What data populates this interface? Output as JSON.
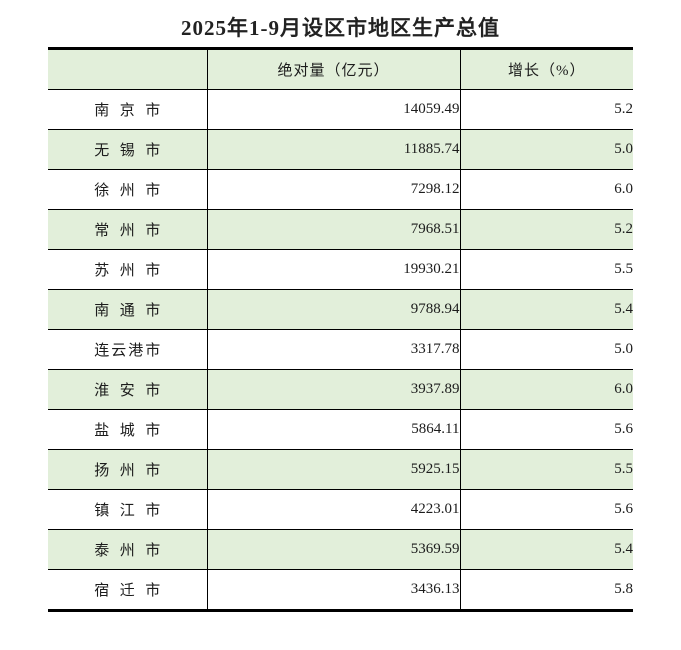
{
  "title": "2025年1-9月设区市地区生产总值",
  "colors": {
    "stripe_green": "#e2efda",
    "border_black": "#000000",
    "background": "#ffffff",
    "text": "#1c1c1c"
  },
  "table": {
    "headers": {
      "city": "",
      "absolute": "绝对量（亿元）",
      "growth": "增长（%）"
    },
    "rows": [
      {
        "city": "南京市",
        "absolute": "14059.49",
        "growth": "5.2"
      },
      {
        "city": "无锡市",
        "absolute": "11885.74",
        "growth": "5.0"
      },
      {
        "city": "徐州市",
        "absolute": "7298.12",
        "growth": "6.0"
      },
      {
        "city": "常州市",
        "absolute": "7968.51",
        "growth": "5.2"
      },
      {
        "city": "苏州市",
        "absolute": "19930.21",
        "growth": "5.5"
      },
      {
        "city": "南通市",
        "absolute": "9788.94",
        "growth": "5.4"
      },
      {
        "city": "连云港市",
        "absolute": "3317.78",
        "growth": "5.0"
      },
      {
        "city": "淮安市",
        "absolute": "3937.89",
        "growth": "6.0"
      },
      {
        "city": "盐城市",
        "absolute": "5864.11",
        "growth": "5.6"
      },
      {
        "city": "扬州市",
        "absolute": "5925.15",
        "growth": "5.5"
      },
      {
        "city": "镇江市",
        "absolute": "4223.01",
        "growth": "5.6"
      },
      {
        "city": "泰州市",
        "absolute": "5369.59",
        "growth": "5.4"
      },
      {
        "city": "宿迁市",
        "absolute": "3436.13",
        "growth": "5.8"
      }
    ]
  }
}
